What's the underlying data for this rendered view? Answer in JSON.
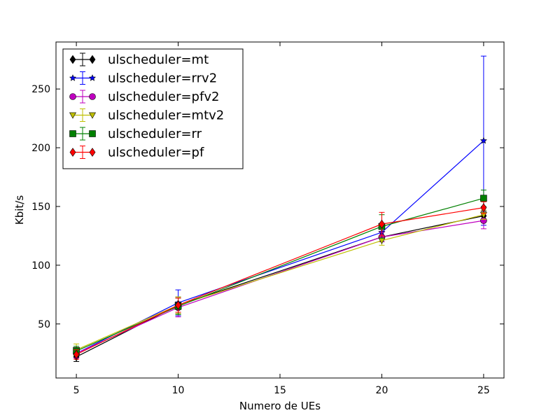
{
  "chart_data": {
    "type": "line",
    "xlabel": "Numero de UEs",
    "ylabel": "Kbit/s",
    "xlim": [
      4,
      26
    ],
    "ylim": [
      4,
      290
    ],
    "xticks": [
      5,
      10,
      15,
      20,
      25
    ],
    "yticks": [
      50,
      100,
      150,
      200,
      250
    ],
    "legend_position": "upper-left",
    "grid": false,
    "x": [
      5,
      10,
      20,
      25
    ],
    "series": [
      {
        "name": "ulscheduler=mt",
        "color": "#000000",
        "marker": "diamond",
        "values": [
          22,
          66,
          124,
          142
        ],
        "yerr": [
          4,
          7,
          4,
          4
        ]
      },
      {
        "name": "ulscheduler=rrv2",
        "color": "#0000ff",
        "marker": "star",
        "values": [
          25,
          68,
          128,
          206
        ],
        "yerr": [
          4,
          11,
          4,
          72
        ]
      },
      {
        "name": "ulscheduler=pfv2",
        "color": "#bf00bf",
        "marker": "circle",
        "values": [
          25,
          64,
          124,
          138
        ],
        "yerr": [
          4,
          8,
          4,
          7
        ]
      },
      {
        "name": "ulscheduler=mtv2",
        "color": "#bfbf00",
        "marker": "triangle",
        "values": [
          28,
          66,
          121,
          143
        ],
        "yerr": [
          5,
          7,
          4,
          4
        ]
      },
      {
        "name": "ulscheduler=rr",
        "color": "#008000",
        "marker": "square",
        "values": [
          27,
          65,
          133,
          157
        ],
        "yerr": [
          4,
          7,
          10,
          7
        ]
      },
      {
        "name": "ulscheduler=pf",
        "color": "#ff0000",
        "marker": "diamond",
        "values": [
          24,
          66,
          135,
          149
        ],
        "yerr": [
          4,
          6,
          10,
          5
        ]
      }
    ]
  }
}
